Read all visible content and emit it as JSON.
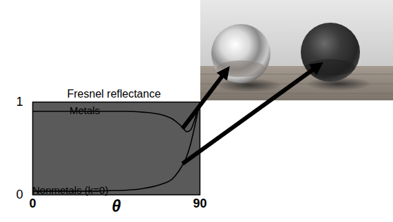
{
  "chart_data": {
    "type": "line",
    "title": "Fresnel reflectance",
    "xlabel": "θ",
    "x": [
      0,
      10,
      20,
      30,
      40,
      50,
      60,
      65,
      70,
      75,
      80,
      83,
      85,
      87,
      90
    ],
    "series": [
      {
        "name": "Metals",
        "color": "#000000",
        "values": [
          0.9,
          0.9,
          0.9,
          0.9,
          0.9,
          0.9,
          0.89,
          0.88,
          0.86,
          0.82,
          0.74,
          0.68,
          0.7,
          0.8,
          1
        ]
      },
      {
        "name": "Nonmetals (k=0)",
        "color": "#000000",
        "values": [
          0.04,
          0.04,
          0.04,
          0.04,
          0.045,
          0.05,
          0.07,
          0.09,
          0.12,
          0.17,
          0.3,
          0.42,
          0.55,
          0.72,
          1
        ]
      }
    ],
    "xlim": [
      0,
      90
    ],
    "xticks": [
      0,
      90
    ],
    "ylim": [
      0,
      1
    ],
    "yticks": [
      0,
      1
    ]
  }
}
